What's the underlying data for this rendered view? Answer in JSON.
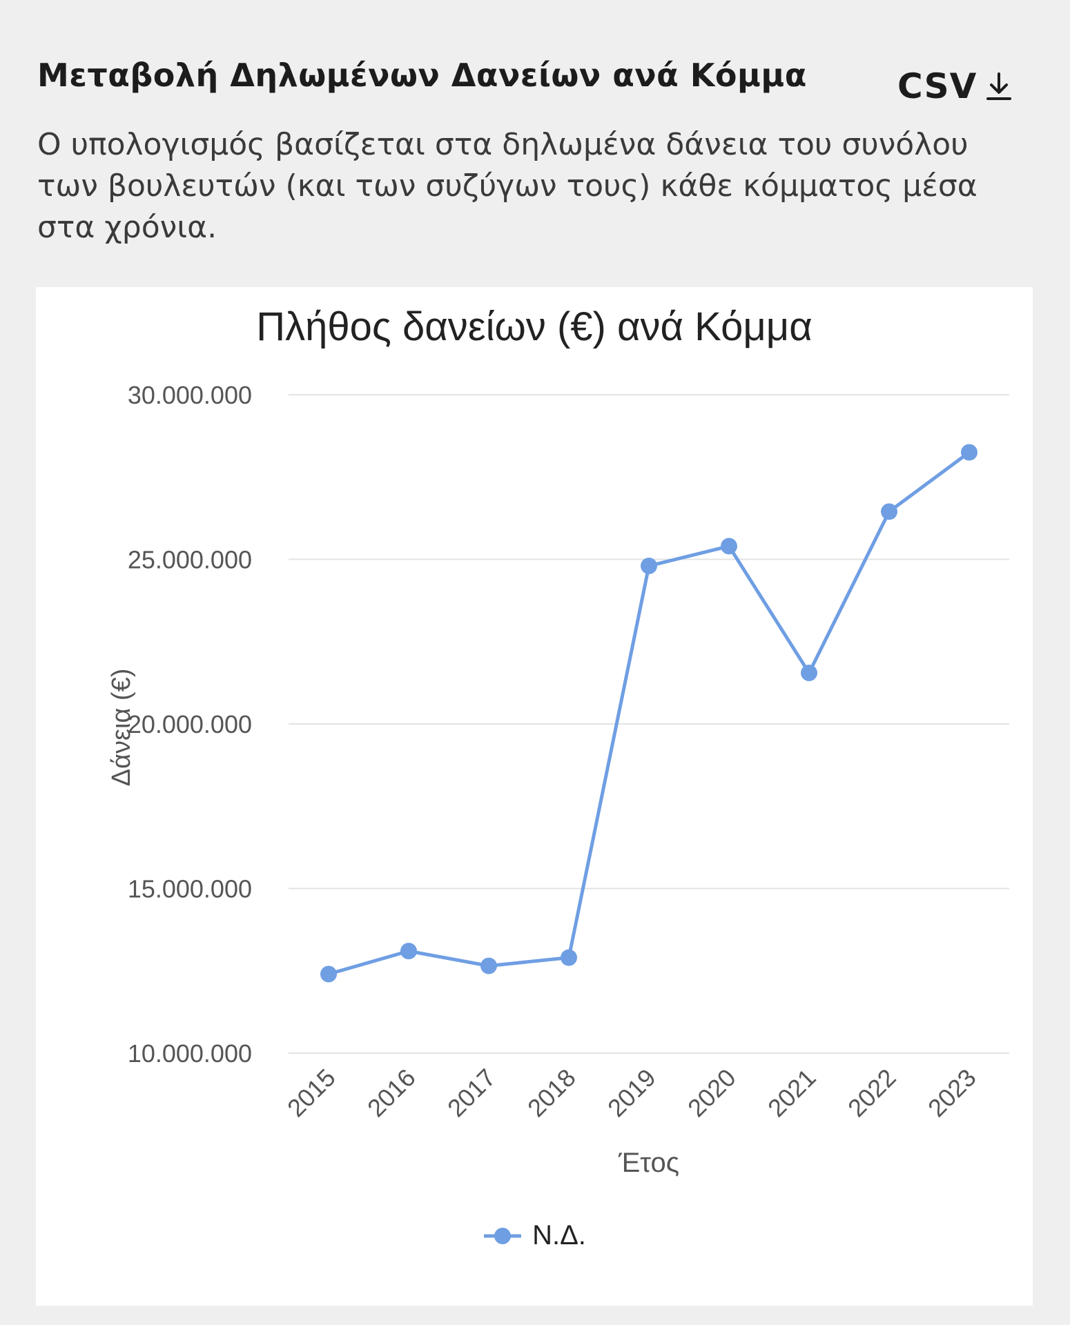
{
  "header": {
    "title": "Μεταβολή Δηλωμένων Δανείων ανά Κόμμα",
    "csv_label": "CSV"
  },
  "description": "Ο υπολογισμός βασίζεται στα δηλωμένα δάνεια του συνόλου των βουλευτών (και των συζύγων τους) κάθε κόμματος μέσα στα χρόνια.",
  "colors": {
    "series": "#6f9ee3",
    "grid": "#e3e3e3",
    "background": "#efefef"
  },
  "icons": {
    "csv_download": "download-arrow-icon"
  },
  "chart_data": {
    "type": "line",
    "title": "Πλήθος δανείων (€) ανά Κόμμα",
    "xlabel": "Έτος",
    "ylabel": "Δάνεια (€)",
    "categories": [
      "2015",
      "2016",
      "2017",
      "2018",
      "2019",
      "2020",
      "2021",
      "2022",
      "2023"
    ],
    "series": [
      {
        "name": "Ν.Δ.",
        "values": [
          12400000,
          13100000,
          12650000,
          12900000,
          24800000,
          25400000,
          21550000,
          26450000,
          28250000
        ]
      }
    ],
    "ylim": [
      10000000,
      30000000
    ],
    "yticks": [
      {
        "value": 10000000,
        "label": "10.000.000"
      },
      {
        "value": 15000000,
        "label": "15.000.000"
      },
      {
        "value": 20000000,
        "label": "20.000.000"
      },
      {
        "value": 25000000,
        "label": "25.000.000"
      },
      {
        "value": 30000000,
        "label": "30.000.000"
      }
    ],
    "grid": true,
    "legend_position": "bottom-center"
  }
}
